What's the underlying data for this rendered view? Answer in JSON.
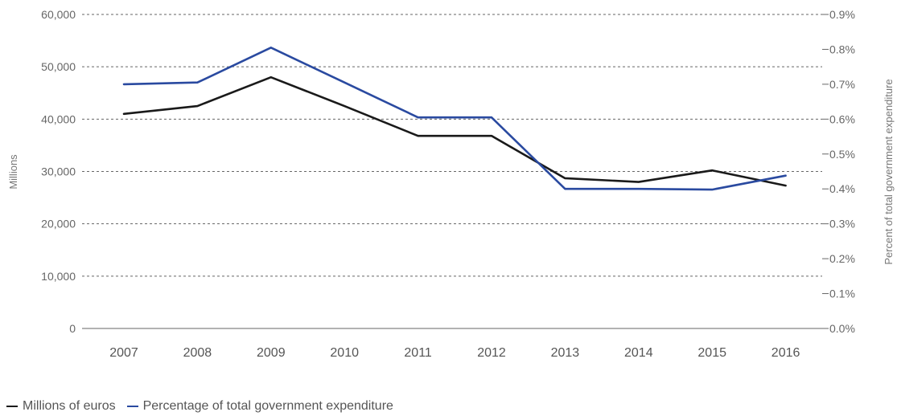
{
  "chart_data": {
    "type": "line",
    "categories": [
      "2007",
      "2008",
      "2009",
      "2010",
      "2011",
      "2012",
      "2013",
      "2014",
      "2015",
      "2016"
    ],
    "series": [
      {
        "name": "Millions of euros",
        "axis": "left",
        "color": "#1a1a1a",
        "values": [
          41000,
          42500,
          48000,
          42500,
          36800,
          36800,
          28700,
          28000,
          30200,
          27300
        ]
      },
      {
        "name": "Percentage of total government expenditure",
        "axis": "right",
        "color": "#2a4aa0",
        "values": [
          0.7,
          0.705,
          0.805,
          0.705,
          0.605,
          0.605,
          0.4,
          0.4,
          0.398,
          0.438
        ]
      }
    ],
    "y_left": {
      "label": "Millions",
      "ylim": [
        0,
        60000
      ],
      "ticks": [
        "0",
        "10,000",
        "20,000",
        "30,000",
        "40,000",
        "50,000",
        "60,000"
      ]
    },
    "y_right": {
      "label": "Percent of total government expenditure",
      "ylim": [
        0,
        0.9
      ],
      "ticks": [
        "0.0%",
        "0.1%",
        "0.2%",
        "0.3%",
        "0.4%",
        "0.5%",
        "0.6%",
        "0.7%",
        "0.8%",
        "0.9%"
      ]
    },
    "grid": "horizontal-dashed",
    "legend_position": "bottom-left"
  }
}
